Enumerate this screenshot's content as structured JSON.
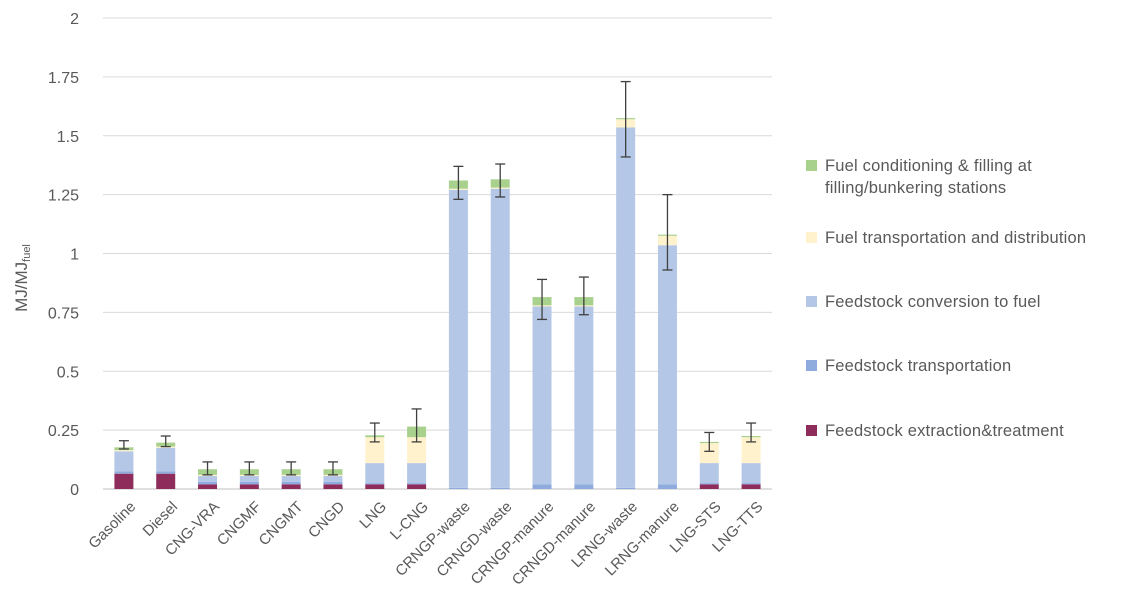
{
  "chart_data": {
    "type": "bar",
    "stacked": true,
    "ylabel": "MJ/MJ",
    "ylabel_subscript": "fuel",
    "ylim": [
      0,
      2
    ],
    "yticks": [
      "0",
      "0.25",
      "0.5",
      "0.75",
      "1",
      "1.25",
      "1.5",
      "1.75",
      "2"
    ],
    "grid": true,
    "legend_position": "right",
    "categories": [
      "Gasoline",
      "Diesel",
      "CNG-VRA",
      "CNGMF",
      "CNGMT",
      "CNGD",
      "LNG",
      "L-CNG",
      "CRNGP-waste",
      "CRNGD-waste",
      "CRNGP-manure",
      "CRNGD-manure",
      "LRNG-waste",
      "LRNG-manure",
      "LNG-STS",
      "LNG-TTS"
    ],
    "series": [
      {
        "name": "Feedstock extraction&treatment",
        "color": "#8e2d5c",
        "values": [
          0.065,
          0.065,
          0.02,
          0.02,
          0.02,
          0.02,
          0.02,
          0.02,
          0,
          0,
          0,
          0,
          0,
          0,
          0.02,
          0.02
        ]
      },
      {
        "name": "Feedstock transportation",
        "color": "#8faadc",
        "values": [
          0.01,
          0.01,
          0.01,
          0.01,
          0.01,
          0.01,
          0.005,
          0.005,
          0.005,
          0.005,
          0.02,
          0.02,
          0.005,
          0.02,
          0.005,
          0.005
        ]
      },
      {
        "name": "Feedstock conversion to fuel",
        "color": "#b4c7e7",
        "values": [
          0.085,
          0.1,
          0.025,
          0.025,
          0.025,
          0.025,
          0.085,
          0.085,
          1.265,
          1.27,
          0.755,
          0.755,
          1.53,
          1.015,
          0.085,
          0.085
        ]
      },
      {
        "name": "Fuel transportation and distribution",
        "color": "#fff2cc",
        "values": [
          0.005,
          0.005,
          0.005,
          0.005,
          0.005,
          0.005,
          0.11,
          0.11,
          0.005,
          0.005,
          0.005,
          0.005,
          0.035,
          0.04,
          0.085,
          0.11
        ]
      },
      {
        "name": "Fuel conditioning & filling at filling/bunkering stations",
        "color": "#a9d18e",
        "values": [
          0.012,
          0.017,
          0.024,
          0.024,
          0.024,
          0.024,
          0.008,
          0.045,
          0.035,
          0.035,
          0.035,
          0.035,
          0.005,
          0.005,
          0.005,
          0.005
        ]
      }
    ],
    "error_bars": {
      "low": [
        0.17,
        0.18,
        0.06,
        0.06,
        0.06,
        0.06,
        0.2,
        0.2,
        1.23,
        1.24,
        0.72,
        0.74,
        1.41,
        0.93,
        0.16,
        0.2
      ],
      "high": [
        0.205,
        0.225,
        0.115,
        0.115,
        0.115,
        0.115,
        0.28,
        0.34,
        1.37,
        1.38,
        0.89,
        0.9,
        1.73,
        1.25,
        0.24,
        0.28
      ]
    }
  },
  "legend": {
    "items": [
      {
        "label_lines": [
          "Fuel conditioning & filling at",
          "filling/bunkering stations"
        ],
        "color": "#a9d18e"
      },
      {
        "label_lines": [
          "Fuel transportation and distribution"
        ],
        "color": "#fff2cc"
      },
      {
        "label_lines": [
          "Feedstock conversion to fuel"
        ],
        "color": "#b4c7e7"
      },
      {
        "label_lines": [
          "Feedstock transportation"
        ],
        "color": "#8faadc"
      },
      {
        "label_lines": [
          "Feedstock extraction&treatment"
        ],
        "color": "#8e2d5c"
      }
    ]
  }
}
